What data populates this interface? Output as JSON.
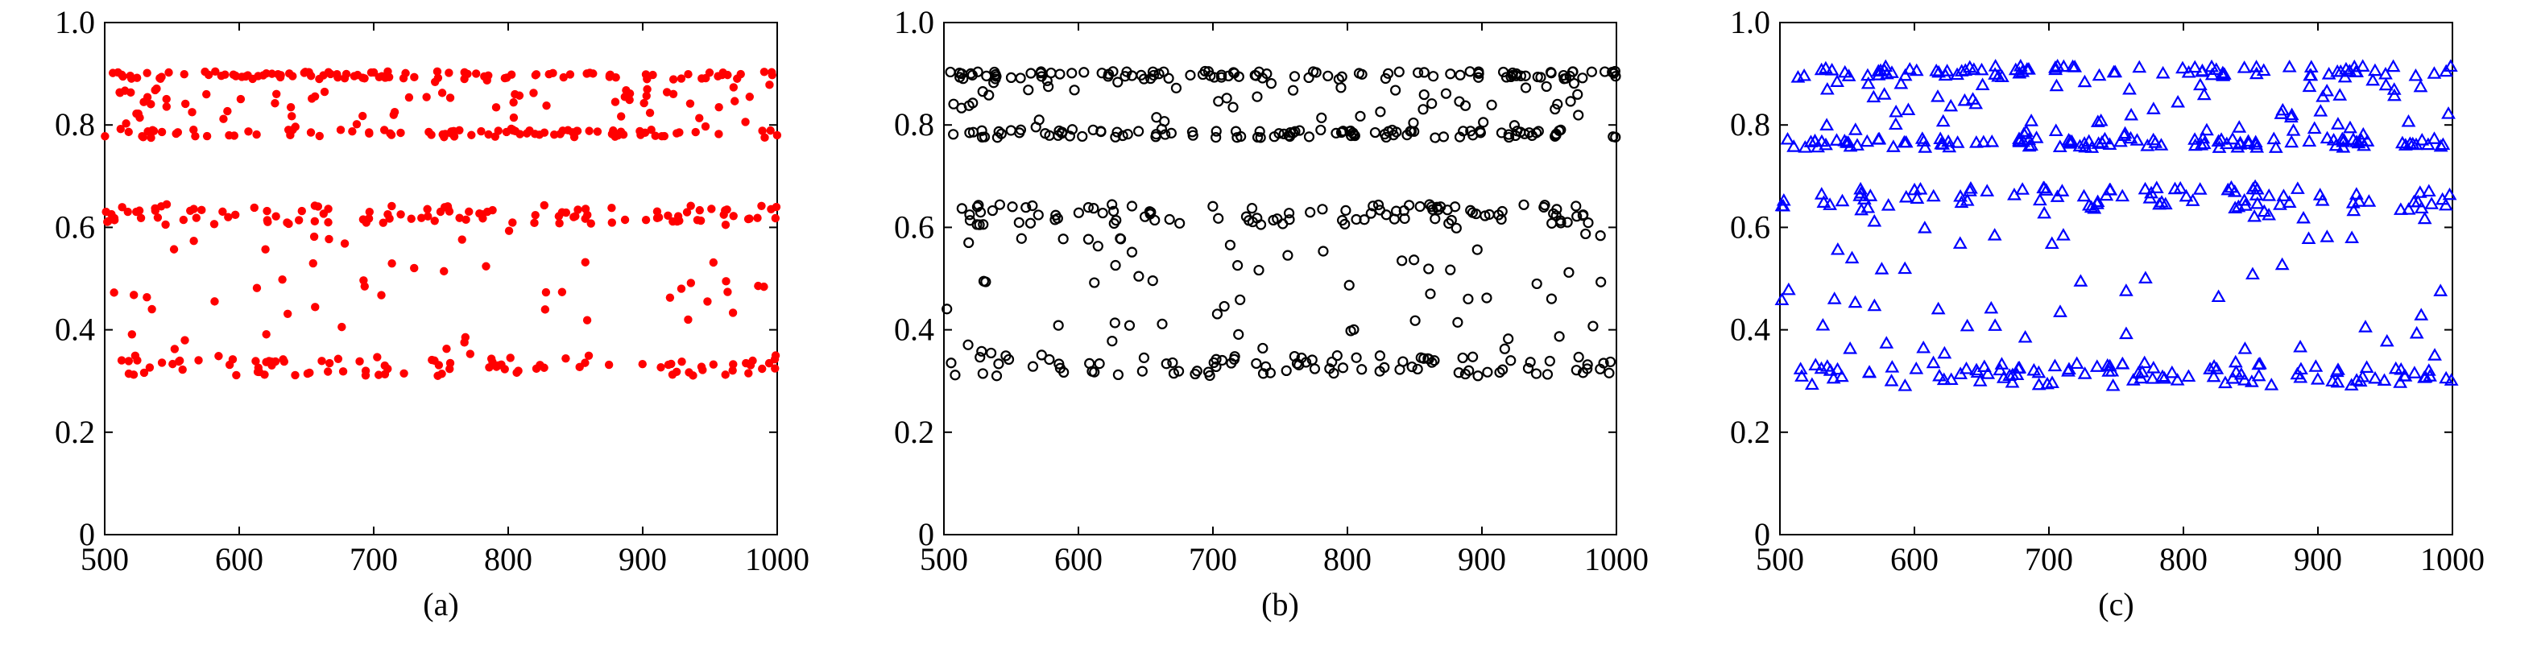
{
  "chart_data": [
    {
      "type": "scatter",
      "caption": "(a)",
      "marker": "filled-circle",
      "color": "#ff0000",
      "xlim": [
        500,
        1000
      ],
      "ylim": [
        0,
        1
      ],
      "xticks": [
        "500",
        "600",
        "700",
        "800",
        "900",
        "1000"
      ],
      "yticks": [
        "0",
        "0.2",
        "0.4",
        "0.6",
        "0.8",
        "1.0"
      ],
      "grid": false,
      "seed": 11,
      "bands": [
        {
          "lo": 0.775,
          "hi": 0.905,
          "n": 260
        },
        {
          "lo": 0.31,
          "hi": 0.645,
          "n": 260
        }
      ]
    },
    {
      "type": "scatter",
      "caption": "(b)",
      "marker": "open-circle",
      "color": "#000000",
      "xlim": [
        500,
        1000
      ],
      "ylim": [
        0,
        1
      ],
      "xticks": [
        "500",
        "600",
        "700",
        "800",
        "900",
        "1000"
      ],
      "yticks": [
        "0",
        "0.2",
        "0.4",
        "0.6",
        "0.8",
        "1.0"
      ],
      "grid": false,
      "seed": 23,
      "bands": [
        {
          "lo": 0.775,
          "hi": 0.905,
          "n": 250
        },
        {
          "lo": 0.31,
          "hi": 0.645,
          "n": 250
        }
      ]
    },
    {
      "type": "scatter",
      "caption": "(c)",
      "marker": "open-triangle",
      "color": "#0000ff",
      "xlim": [
        500,
        1000
      ],
      "ylim": [
        0,
        1
      ],
      "xticks": [
        "500",
        "600",
        "700",
        "800",
        "900",
        "1000"
      ],
      "yticks": [
        "0",
        "0.2",
        "0.4",
        "0.6",
        "0.8",
        "1.0"
      ],
      "grid": false,
      "seed": 37,
      "bands": [
        {
          "lo": 0.755,
          "hi": 0.915,
          "n": 250
        },
        {
          "lo": 0.29,
          "hi": 0.68,
          "n": 250
        }
      ]
    }
  ]
}
